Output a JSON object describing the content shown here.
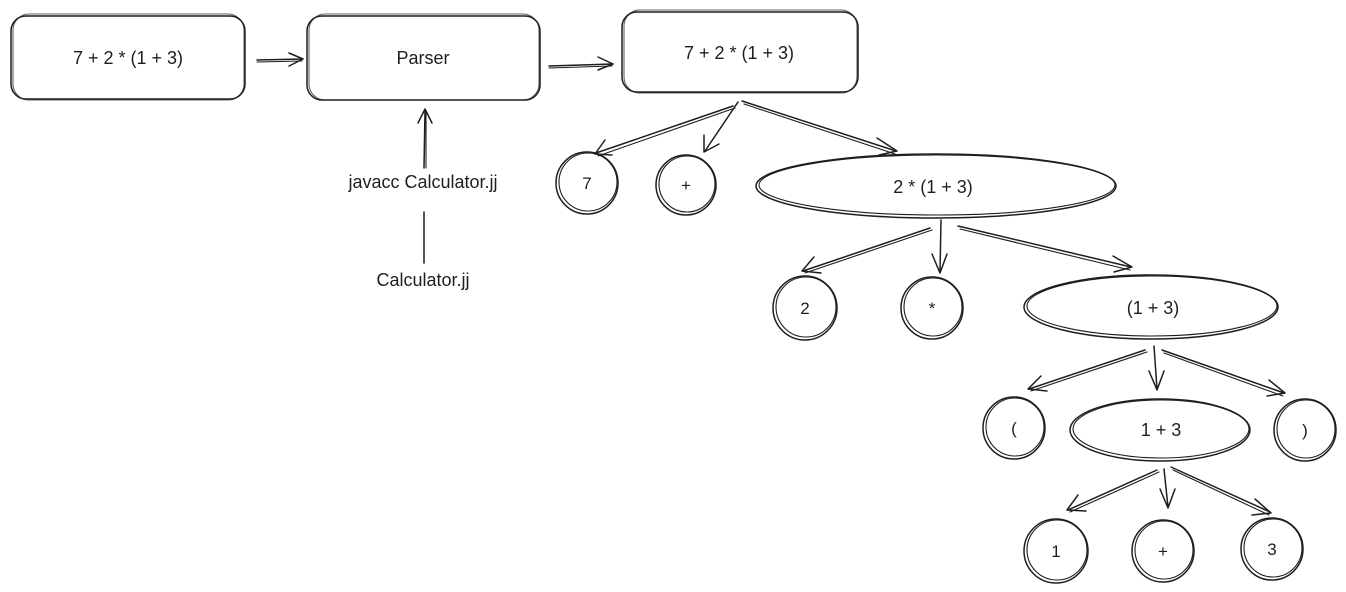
{
  "flow": {
    "input_expression": "7 + 2 * (1 + 3)",
    "parser_label": "Parser",
    "command_label": "javacc Calculator.jj",
    "grammar_file": "Calculator.jj"
  },
  "tree": {
    "root": "7 + 2 * (1 + 3)",
    "level1": [
      "7",
      "+",
      "2 * (1 + 3)"
    ],
    "level2": [
      "2",
      "*",
      "(1 + 3)"
    ],
    "level3": [
      "(",
      "1 + 3",
      ")"
    ],
    "level4": [
      "1",
      "+",
      "3"
    ]
  }
}
